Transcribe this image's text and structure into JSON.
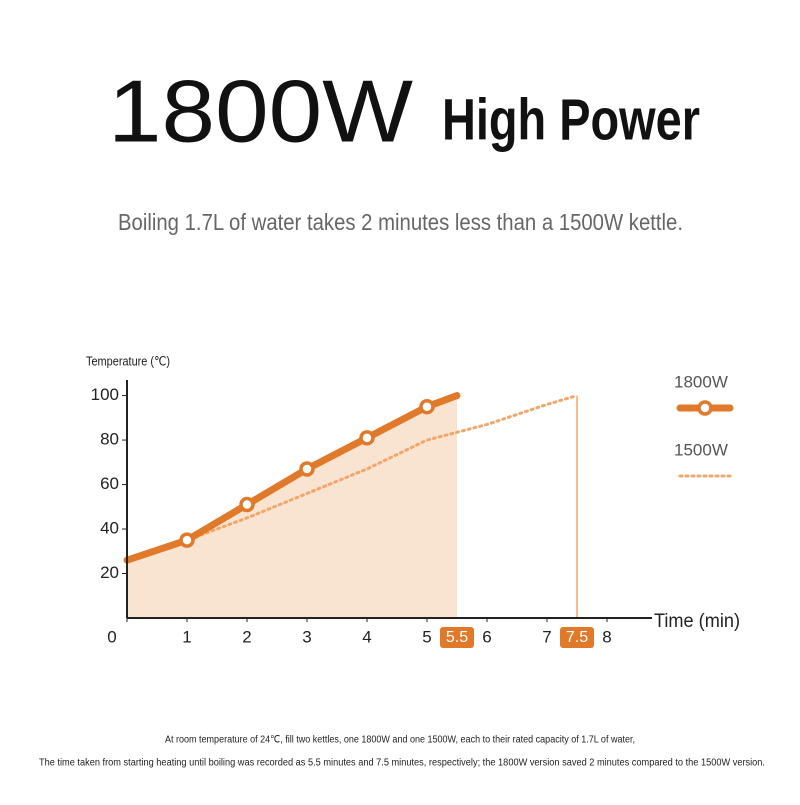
{
  "chart_data": {
    "type": "line",
    "headline": "1800W",
    "title": "High Power",
    "subtitle": "Boiling 1.7L of water takes 2 minutes less than a 1500W kettle.",
    "ylabel": "Temperature (℃)",
    "xlabel": "Time (min)",
    "notes": [
      "At room temperature of 24℃, fill two kettles, one 1800W and one 1500W, each to their rated capacity of 1.7L of water,",
      "The time taken from starting heating until boiling was recorded as 5.5 minutes and 7.5 minutes, respectively; the 1800W version saved 2 minutes compared to the 1500W version."
    ],
    "series": [
      {
        "name": "1800W",
        "color": "#e07a2a",
        "style": "solid",
        "x": [
          0,
          1,
          2,
          3,
          4,
          5,
          5.5
        ],
        "values": [
          26,
          35,
          51,
          67,
          81,
          95,
          100
        ]
      },
      {
        "name": "1500W",
        "color": "#f2a66a",
        "style": "dotted",
        "x": [
          0,
          1,
          2,
          3,
          4,
          5,
          6,
          7,
          7.5
        ],
        "values": [
          26,
          35,
          45,
          56,
          67,
          80,
          87,
          96,
          100
        ]
      }
    ],
    "xlim": [
      0,
      8.5
    ],
    "xticks": [
      0,
      1,
      2,
      3,
      4,
      5,
      6,
      7,
      8
    ],
    "highlight_xticks": [
      5.5,
      7.5
    ],
    "ylim": [
      0,
      107
    ],
    "yticks": [
      20,
      40,
      60,
      80,
      100
    ]
  }
}
